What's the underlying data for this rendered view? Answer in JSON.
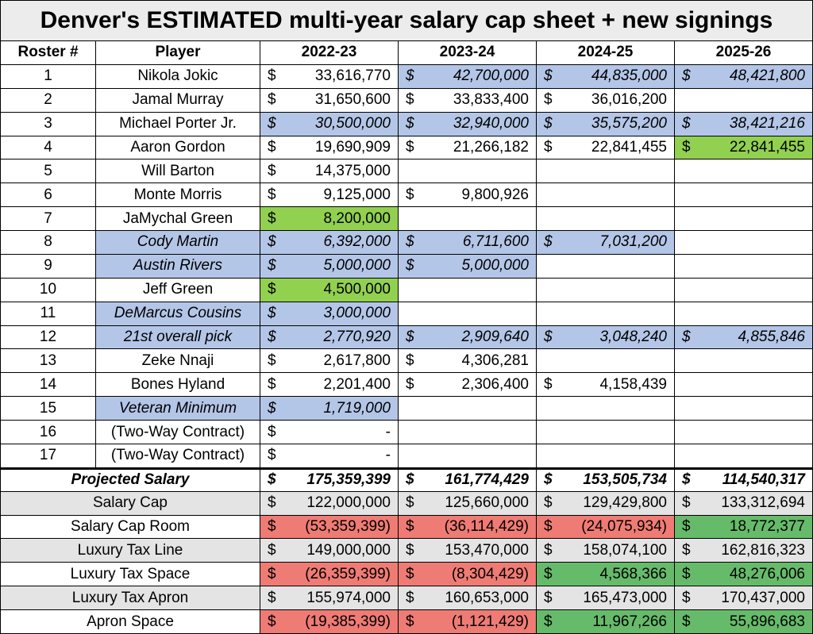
{
  "title": "Denver's ESTIMATED multi-year salary cap sheet + new signings",
  "currency": "$",
  "table": {
    "header": [
      "Roster #",
      "Player",
      "2022-23",
      "2023-24",
      "2024-25",
      "2025-26"
    ],
    "rows": [
      {
        "roster": "1",
        "player": "Nikola Jokic",
        "salaries": [
          {
            "amount": "33,616,770"
          },
          {
            "amount": "42,700,000",
            "fill": "#b4c6e7",
            "italic": true
          },
          {
            "amount": "44,835,000",
            "fill": "#b4c6e7",
            "italic": true
          },
          {
            "amount": "48,421,800",
            "fill": "#b4c6e7",
            "italic": true
          }
        ]
      },
      {
        "roster": "2",
        "player": "Jamal Murray",
        "salaries": [
          {
            "amount": "31,650,600"
          },
          {
            "amount": "33,833,400"
          },
          {
            "amount": "36,016,200"
          },
          null
        ]
      },
      {
        "roster": "3",
        "player": "Michael Porter Jr.",
        "salaries": [
          {
            "amount": "30,500,000",
            "fill": "#b4c6e7",
            "italic": true
          },
          {
            "amount": "32,940,000",
            "fill": "#b4c6e7",
            "italic": true
          },
          {
            "amount": "35,575,200",
            "fill": "#b4c6e7",
            "italic": true
          },
          {
            "amount": "38,421,216",
            "fill": "#b4c6e7",
            "italic": true
          }
        ]
      },
      {
        "roster": "4",
        "player": "Aaron Gordon",
        "salaries": [
          {
            "amount": "19,690,909"
          },
          {
            "amount": "21,266,182"
          },
          {
            "amount": "22,841,455"
          },
          {
            "amount": "22,841,455",
            "fill": "#92d050"
          }
        ]
      },
      {
        "roster": "5",
        "player": "Will Barton",
        "salaries": [
          {
            "amount": "14,375,000"
          },
          null,
          null,
          null
        ]
      },
      {
        "roster": "6",
        "player": "Monte Morris",
        "salaries": [
          {
            "amount": "9,125,000"
          },
          {
            "amount": "9,800,926"
          },
          null,
          null
        ]
      },
      {
        "roster": "7",
        "player": "JaMychal Green",
        "salaries": [
          {
            "amount": "8,200,000",
            "fill": "#92d050"
          },
          null,
          null,
          null
        ]
      },
      {
        "roster": "8",
        "player": "Cody Martin",
        "player_fill": "#b4c6e7",
        "player_italic": true,
        "salaries": [
          {
            "amount": "6,392,000",
            "fill": "#b4c6e7",
            "italic": true
          },
          {
            "amount": "6,711,600",
            "fill": "#b4c6e7",
            "italic": true
          },
          {
            "amount": "7,031,200",
            "fill": "#b4c6e7",
            "italic": true
          },
          null
        ]
      },
      {
        "roster": "9",
        "player": "Austin Rivers",
        "player_fill": "#b4c6e7",
        "player_italic": true,
        "salaries": [
          {
            "amount": "5,000,000",
            "fill": "#b4c6e7",
            "italic": true
          },
          {
            "amount": "5,000,000",
            "fill": "#b4c6e7",
            "italic": true
          },
          null,
          null
        ]
      },
      {
        "roster": "10",
        "player": "Jeff Green",
        "salaries": [
          {
            "amount": "4,500,000",
            "fill": "#92d050"
          },
          null,
          null,
          null
        ]
      },
      {
        "roster": "11",
        "player": "DeMarcus Cousins",
        "player_fill": "#b4c6e7",
        "player_italic": true,
        "salaries": [
          {
            "amount": "3,000,000",
            "fill": "#b4c6e7",
            "italic": true
          },
          null,
          null,
          null
        ]
      },
      {
        "roster": "12",
        "player": "21st overall pick",
        "player_fill": "#b4c6e7",
        "player_italic": true,
        "salaries": [
          {
            "amount": "2,770,920",
            "fill": "#b4c6e7",
            "italic": true
          },
          {
            "amount": "2,909,640",
            "fill": "#b4c6e7",
            "italic": true
          },
          {
            "amount": "3,048,240",
            "fill": "#b4c6e7",
            "italic": true
          },
          {
            "amount": "4,855,846",
            "fill": "#b4c6e7",
            "italic": true
          }
        ]
      },
      {
        "roster": "13",
        "player": "Zeke Nnaji",
        "salaries": [
          {
            "amount": "2,617,800"
          },
          {
            "amount": "4,306,281"
          },
          null,
          null
        ]
      },
      {
        "roster": "14",
        "player": "Bones Hyland",
        "salaries": [
          {
            "amount": "2,201,400"
          },
          {
            "amount": "2,306,400"
          },
          {
            "amount": "4,158,439"
          },
          null
        ]
      },
      {
        "roster": "15",
        "player": "Veteran Minimum",
        "player_fill": "#b4c6e7",
        "player_italic": true,
        "salaries": [
          {
            "amount": "1,719,000",
            "fill": "#b4c6e7",
            "italic": true
          },
          null,
          null,
          null
        ]
      },
      {
        "roster": "16",
        "player": "(Two-Way Contract)",
        "salaries": [
          {
            "amount": "-"
          },
          null,
          null,
          null
        ]
      },
      {
        "roster": "17",
        "player": "(Two-Way Contract)",
        "salaries": [
          {
            "amount": "-"
          },
          null,
          null,
          null
        ]
      },
      {
        "label": "Projected Salary",
        "bold": true,
        "italic": true,
        "salaries": [
          {
            "amount": "175,359,399"
          },
          {
            "amount": "161,774,429"
          },
          {
            "amount": "153,505,734"
          },
          {
            "amount": "114,540,317"
          }
        ]
      },
      {
        "label": "Salary Cap",
        "fill": "#e4e4e4",
        "salaries": [
          {
            "amount": "122,000,000"
          },
          {
            "amount": "125,660,000"
          },
          {
            "amount": "129,429,800"
          },
          {
            "amount": "133,312,694"
          }
        ]
      },
      {
        "label": "Salary Cap Room",
        "salaries": [
          {
            "amount": "(53,359,399)",
            "fill": "#ef7b75"
          },
          {
            "amount": "(36,114,429)",
            "fill": "#ef7b75"
          },
          {
            "amount": "(24,075,934)",
            "fill": "#ef7b75"
          },
          {
            "amount": "18,772,377",
            "fill": "#66bb6a"
          }
        ]
      },
      {
        "label": "Luxury Tax Line",
        "fill": "#e4e4e4",
        "salaries": [
          {
            "amount": "149,000,000"
          },
          {
            "amount": "153,470,000"
          },
          {
            "amount": "158,074,100"
          },
          {
            "amount": "162,816,323"
          }
        ]
      },
      {
        "label": "Luxury Tax Space",
        "salaries": [
          {
            "amount": "(26,359,399)",
            "fill": "#ef7b75"
          },
          {
            "amount": "(8,304,429)",
            "fill": "#ef7b75"
          },
          {
            "amount": "4,568,366",
            "fill": "#66bb6a"
          },
          {
            "amount": "48,276,006",
            "fill": "#66bb6a"
          }
        ]
      },
      {
        "label": "Luxury Tax Apron",
        "fill": "#e4e4e4",
        "salaries": [
          {
            "amount": "155,974,000"
          },
          {
            "amount": "160,653,000"
          },
          {
            "amount": "165,473,000"
          },
          {
            "amount": "170,437,000"
          }
        ]
      },
      {
        "label": "Apron Space",
        "salaries": [
          {
            "amount": "(19,385,399)",
            "fill": "#ef7b75"
          },
          {
            "amount": "(1,121,429)",
            "fill": "#ef7b75"
          },
          {
            "amount": "11,967,266",
            "fill": "#66bb6a"
          },
          {
            "amount": "55,896,683",
            "fill": "#66bb6a"
          }
        ]
      }
    ]
  }
}
